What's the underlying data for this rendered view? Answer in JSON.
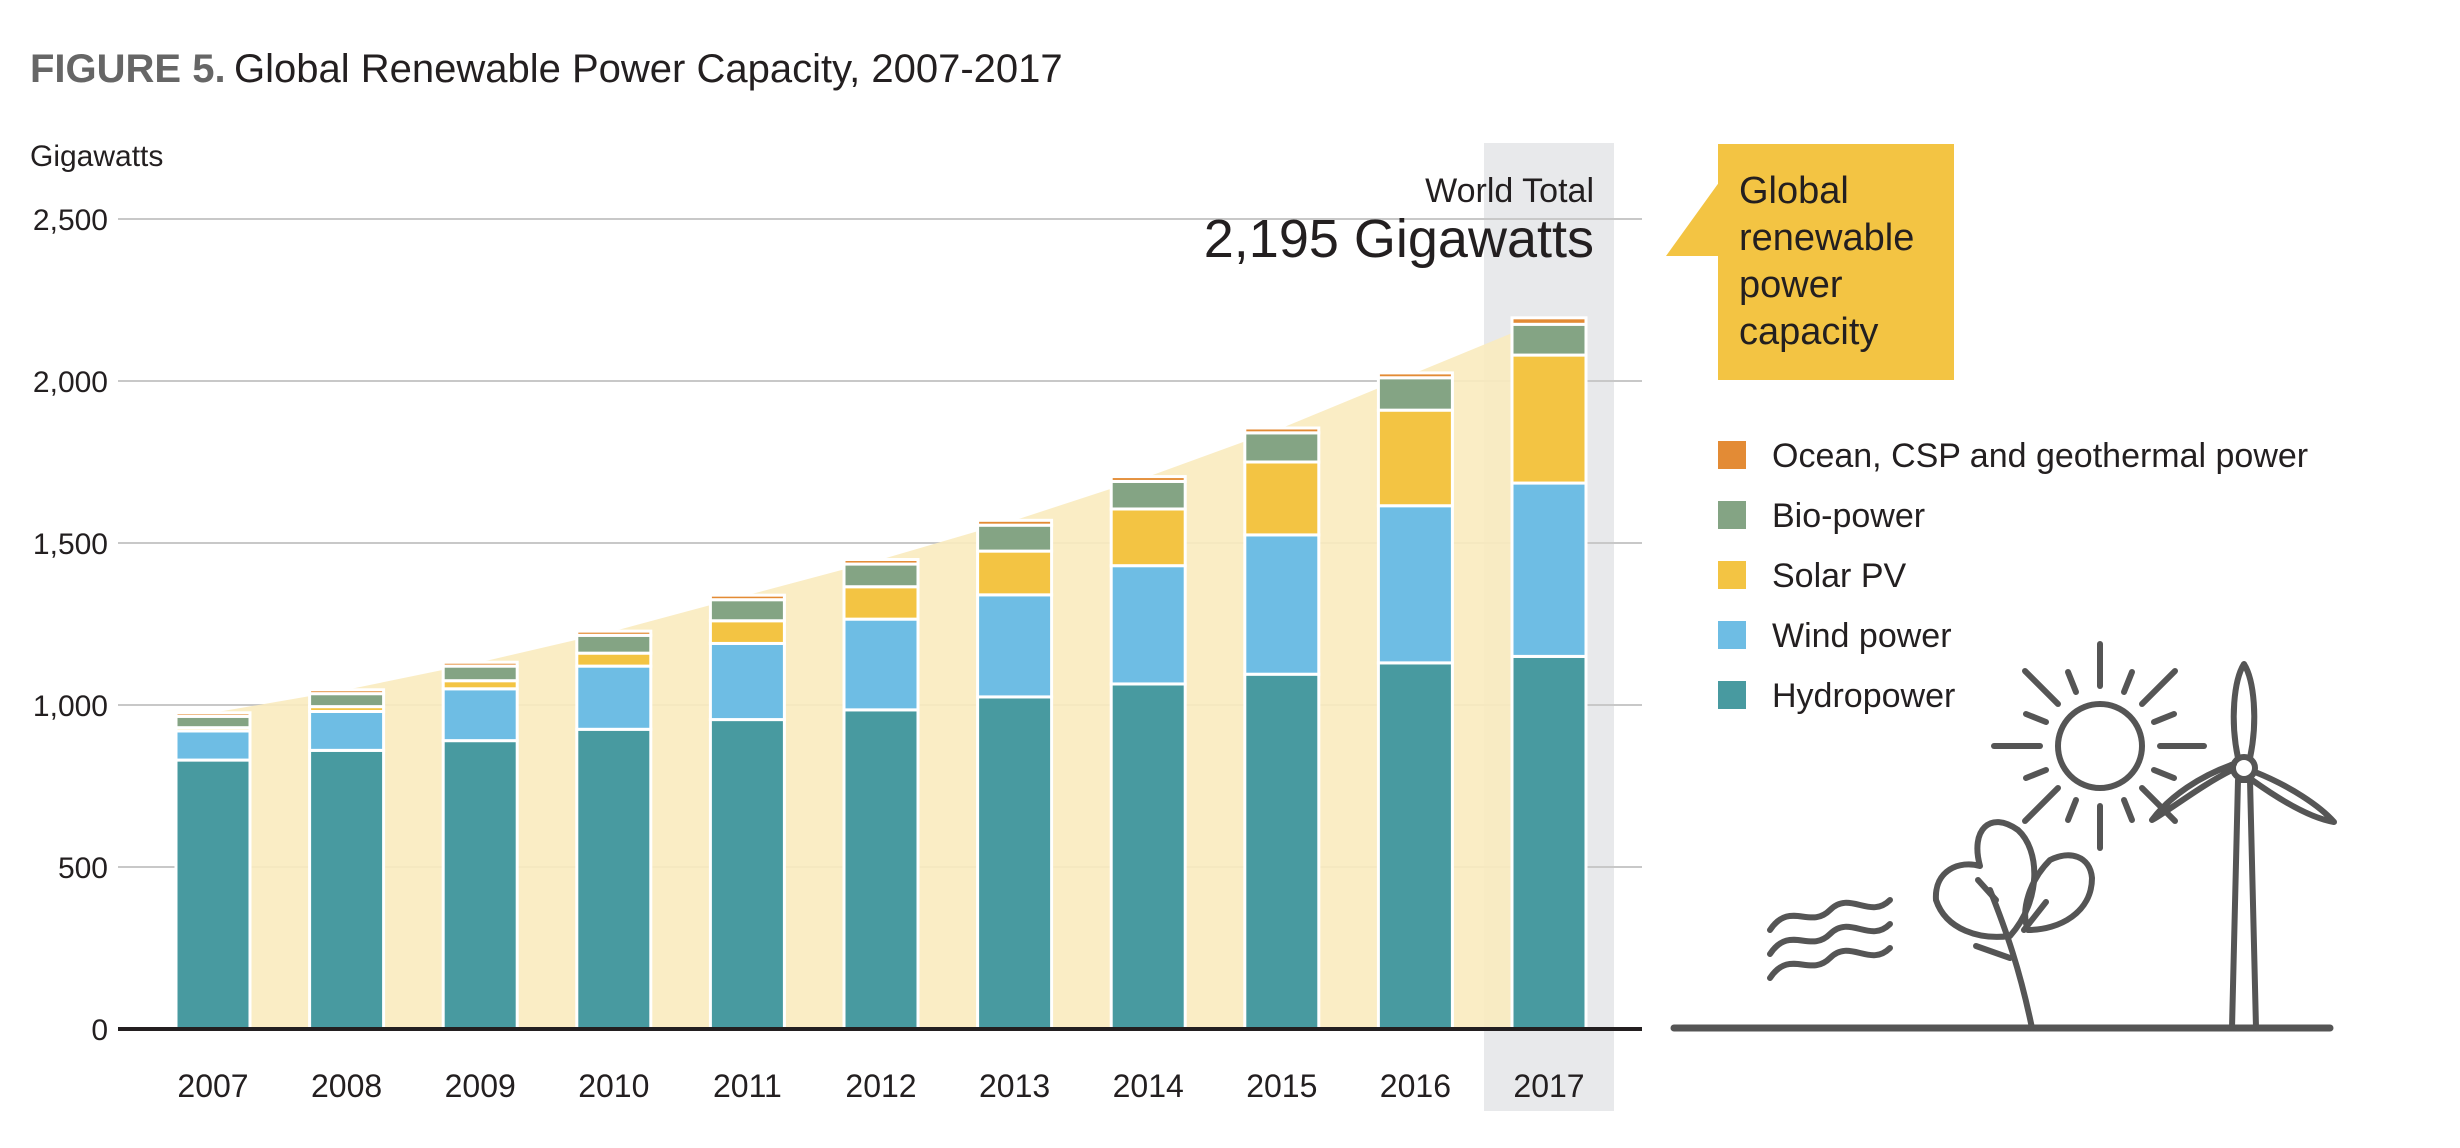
{
  "figure": {
    "label": "FIGURE 5.",
    "title": "Global Renewable Power Capacity, 2007-2017"
  },
  "annotation": {
    "total_label": "World Total",
    "total_value": "2,195 Gigawatts"
  },
  "callout": {
    "lines": [
      "Global",
      "renewable",
      "power",
      "capacity"
    ],
    "color": "#f3c443"
  },
  "colors": {
    "Hydropower": "#489aa0",
    "Wind power": "#6ebde4",
    "Solar PV": "#f3c443",
    "Bio-power": "#84a484",
    "Ocean, CSP and geothermal power": "#e38b35",
    "area": "#faebbf",
    "highlight": "#e8e9eb",
    "icon": "#555555"
  },
  "chart_data": {
    "type": "bar",
    "stacked": true,
    "ylabel": "Gigawatts",
    "ylim": [
      0,
      2500
    ],
    "yticks": [
      "0",
      "500",
      "1,000",
      "1,500",
      "2,000",
      "2,500"
    ],
    "ytick_values": [
      0,
      500,
      1000,
      1500,
      2000,
      2500
    ],
    "grid": true,
    "legend_position": "right",
    "highlight_category": "2017",
    "categories": [
      "2007",
      "2008",
      "2009",
      "2010",
      "2011",
      "2012",
      "2013",
      "2014",
      "2015",
      "2016",
      "2017"
    ],
    "series": [
      {
        "name": "Hydropower",
        "values": [
          830,
          860,
          890,
          925,
          955,
          985,
          1025,
          1065,
          1095,
          1130,
          1150
        ]
      },
      {
        "name": "Wind power",
        "values": [
          90,
          120,
          160,
          195,
          235,
          280,
          315,
          365,
          430,
          485,
          535
        ]
      },
      {
        "name": "Solar PV",
        "values": [
          10,
          15,
          25,
          40,
          70,
          100,
          135,
          175,
          225,
          295,
          395
        ]
      },
      {
        "name": "Bio-power",
        "values": [
          35,
          40,
          45,
          55,
          65,
          70,
          80,
          85,
          90,
          100,
          95
        ]
      },
      {
        "name": "Ocean, CSP and geothermal power",
        "values": [
          11,
          12,
          12,
          13,
          14,
          14,
          15,
          15,
          15,
          15,
          20
        ]
      }
    ]
  },
  "legend_order": [
    "Ocean, CSP and geothermal power",
    "Bio-power",
    "Solar PV",
    "Wind power",
    "Hydropower"
  ]
}
